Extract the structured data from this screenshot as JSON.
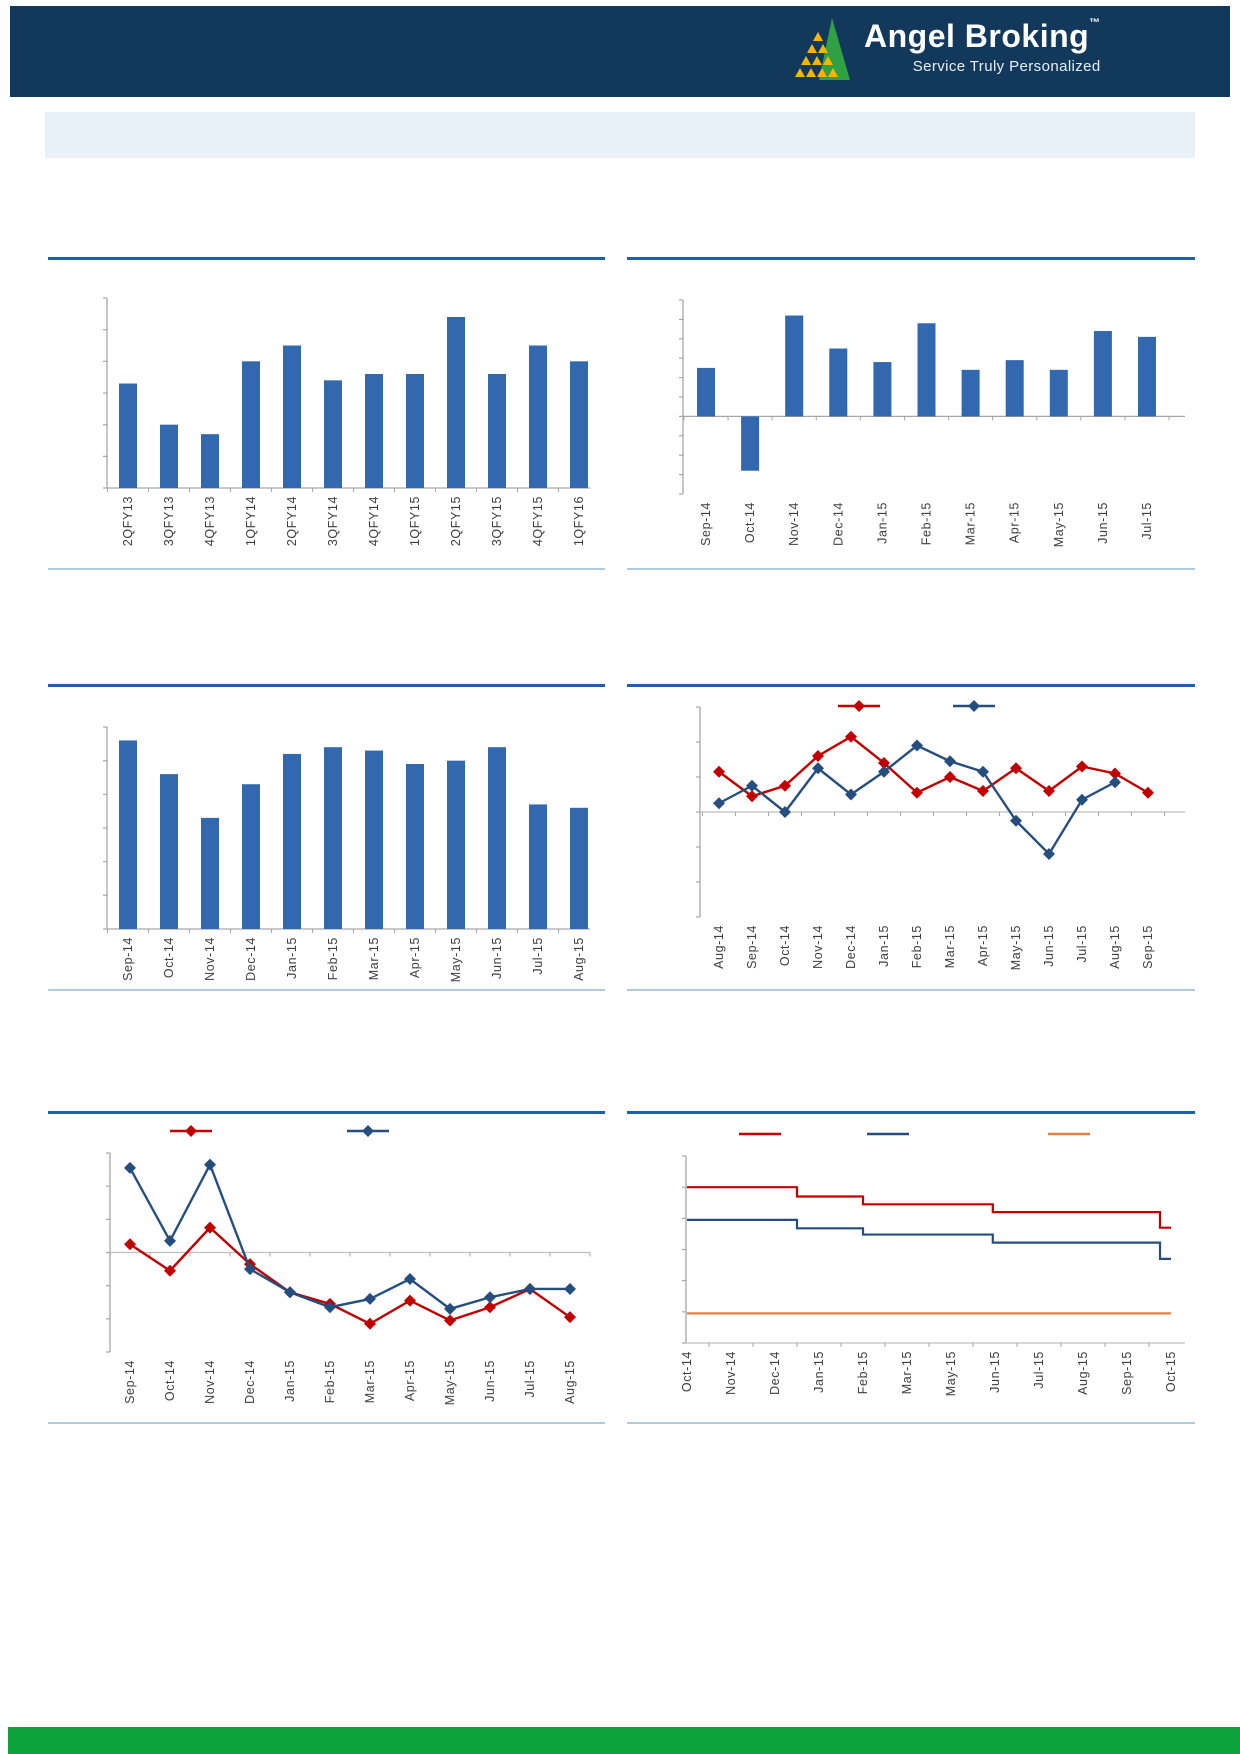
{
  "header": {
    "brand": "Angel Broking",
    "tm": "™",
    "tagline": "Service Truly Personalized",
    "bg": "#12395B"
  },
  "banner": {
    "bg": "#E9F1F8"
  },
  "footer": {
    "bg": "#0EA23C"
  },
  "colors": {
    "section_rule": "#1F5EAC",
    "light_rule": "#AECBE4",
    "bar_blue": "#3168AE",
    "line_red": "#C00000",
    "line_navy": "#254E7E",
    "line_orange": "#E08244",
    "axis": "#A6A6A6",
    "zero_line": "#BFBFBF",
    "label_text": "#3F3F3F"
  },
  "chart_data": [
    {
      "id": "quarterly-bar-chart",
      "type": "bar",
      "categories": [
        "2QFY13",
        "3QFY13",
        "4QFY13",
        "1QFY14",
        "2QFY14",
        "3QFY14",
        "4QFY14",
        "1QFY15",
        "2QFY15",
        "3QFY15",
        "4QFY15",
        "1QFY16"
      ],
      "series": [
        {
          "name": "value",
          "color": "#3168AE",
          "values": [
            3.3,
            2.0,
            1.7,
            4.0,
            4.5,
            3.4,
            3.6,
            3.6,
            5.4,
            3.6,
            4.5,
            4.0
          ]
        }
      ],
      "ylim": [
        0,
        6
      ],
      "ytick_step": 1,
      "grid": false,
      "legend": []
    },
    {
      "id": "monthly-bar-chart-with-negative",
      "type": "bar",
      "categories": [
        "Sep-14",
        "Oct-14",
        "Nov-14",
        "Dec-14",
        "Jan-15",
        "Feb-15",
        "Mar-15",
        "Apr-15",
        "May-15",
        "Jun-15",
        "Jul-15"
      ],
      "series": [
        {
          "name": "value",
          "color": "#3168AE",
          "values": [
            2.5,
            -2.8,
            5.2,
            3.5,
            2.8,
            4.8,
            2.4,
            2.9,
            2.4,
            4.4,
            4.1
          ]
        }
      ],
      "ylim": [
        -4,
        6
      ],
      "ytick_step": 1,
      "grid": false,
      "legend": []
    },
    {
      "id": "monthly-bar-chart",
      "type": "bar",
      "categories": [
        "Sep-14",
        "Oct-14",
        "Nov-14",
        "Dec-14",
        "Jan-15",
        "Feb-15",
        "Mar-15",
        "Apr-15",
        "May-15",
        "Jun-15",
        "Jul-15",
        "Aug-15"
      ],
      "series": [
        {
          "name": "value",
          "color": "#3168AE",
          "values": [
            5.6,
            4.6,
            3.3,
            4.3,
            5.2,
            5.4,
            5.3,
            4.9,
            5.0,
            5.4,
            3.7,
            3.6
          ]
        }
      ],
      "ylim": [
        0,
        6
      ],
      "ytick_step": 1,
      "grid": false,
      "legend": []
    },
    {
      "id": "dual-line-monthly-chart",
      "type": "line",
      "categories": [
        "Aug-14",
        "Sep-14",
        "Oct-14",
        "Nov-14",
        "Dec-14",
        "Jan-15",
        "Feb-15",
        "Mar-15",
        "Apr-15",
        "May-15",
        "Jun-15",
        "Jul-15",
        "Aug-15",
        "Sep-15"
      ],
      "series": [
        {
          "name": "series-red",
          "color": "#C00000",
          "marker": "diamond",
          "values": [
            1.15,
            0.45,
            0.75,
            1.6,
            2.15,
            1.4,
            0.55,
            1.0,
            0.6,
            1.25,
            0.6,
            1.3,
            1.1,
            0.55
          ]
        },
        {
          "name": "series-blue",
          "color": "#254E7E",
          "marker": "diamond",
          "values": [
            0.25,
            0.75,
            0.0,
            1.25,
            0.5,
            1.15,
            1.9,
            1.45,
            1.15,
            -0.25,
            -1.2,
            0.35,
            0.85,
            null
          ]
        }
      ],
      "ylim": [
        -3,
        3
      ],
      "ytick_step": 1,
      "grid": false,
      "legend": [
        {
          "color": "#C00000",
          "marker": "diamond"
        },
        {
          "color": "#254E7E",
          "marker": "diamond"
        }
      ]
    },
    {
      "id": "dual-line-monthly-chart-2",
      "type": "line",
      "categories": [
        "Sep-14",
        "Oct-14",
        "Nov-14",
        "Dec-14",
        "Jan-15",
        "Feb-15",
        "Mar-15",
        "Apr-15",
        "May-15",
        "Jun-15",
        "Jul-15",
        "Aug-15"
      ],
      "series": [
        {
          "name": "series-red",
          "color": "#C00000",
          "marker": "diamond",
          "values": [
            0.25,
            -0.55,
            0.75,
            -0.35,
            -1.2,
            -1.55,
            -2.15,
            -1.45,
            -2.05,
            -1.65,
            -1.1,
            -1.95
          ]
        },
        {
          "name": "series-blue",
          "color": "#254E7E",
          "marker": "diamond",
          "values": [
            2.55,
            0.35,
            2.65,
            -0.5,
            -1.2,
            -1.65,
            -1.4,
            -0.8,
            -1.7,
            -1.35,
            -1.1,
            -1.1
          ]
        }
      ],
      "ylim": [
        -3,
        3
      ],
      "ytick_step": 1,
      "grid": false,
      "legend": [
        {
          "color": "#C00000",
          "marker": "diamond"
        },
        {
          "color": "#254E7E",
          "marker": "diamond"
        }
      ]
    },
    {
      "id": "rate-step-line-chart",
      "type": "step",
      "categories": [
        "Oct-14",
        "Nov-14",
        "Dec-14",
        "Jan-15",
        "Feb-15",
        "Mar-15",
        "May-15",
        "Jun-15",
        "Jul-15",
        "Aug-15",
        "Sep-15",
        "Oct-15"
      ],
      "series": [
        {
          "name": "series-red",
          "color": "#C00000",
          "points": [
            [
              0,
              5
            ],
            [
              2.5,
              5
            ],
            [
              2.5,
              4.7
            ],
            [
              4,
              4.7
            ],
            [
              4,
              4.45
            ],
            [
              6.95,
              4.45
            ],
            [
              6.95,
              4.2
            ],
            [
              10.75,
              4.2
            ],
            [
              10.75,
              3.7
            ],
            [
              11,
              3.7
            ]
          ]
        },
        {
          "name": "series-blue",
          "color": "#254E7E",
          "points": [
            [
              0,
              3.95
            ],
            [
              2.5,
              3.95
            ],
            [
              2.5,
              3.68
            ],
            [
              4,
              3.68
            ],
            [
              4,
              3.48
            ],
            [
              6.95,
              3.48
            ],
            [
              6.95,
              3.22
            ],
            [
              10.75,
              3.22
            ],
            [
              10.75,
              2.7
            ],
            [
              11,
              2.7
            ]
          ]
        },
        {
          "name": "series-orange",
          "color": "#E08244",
          "points": [
            [
              0,
              0.95
            ],
            [
              11,
              0.95
            ]
          ]
        }
      ],
      "ylim": [
        0,
        6
      ],
      "ytick_step": 1,
      "grid": false,
      "legend": [
        {
          "color": "#C00000",
          "marker": "line"
        },
        {
          "color": "#254E7E",
          "marker": "line"
        },
        {
          "color": "#E08244",
          "marker": "line"
        }
      ]
    }
  ]
}
